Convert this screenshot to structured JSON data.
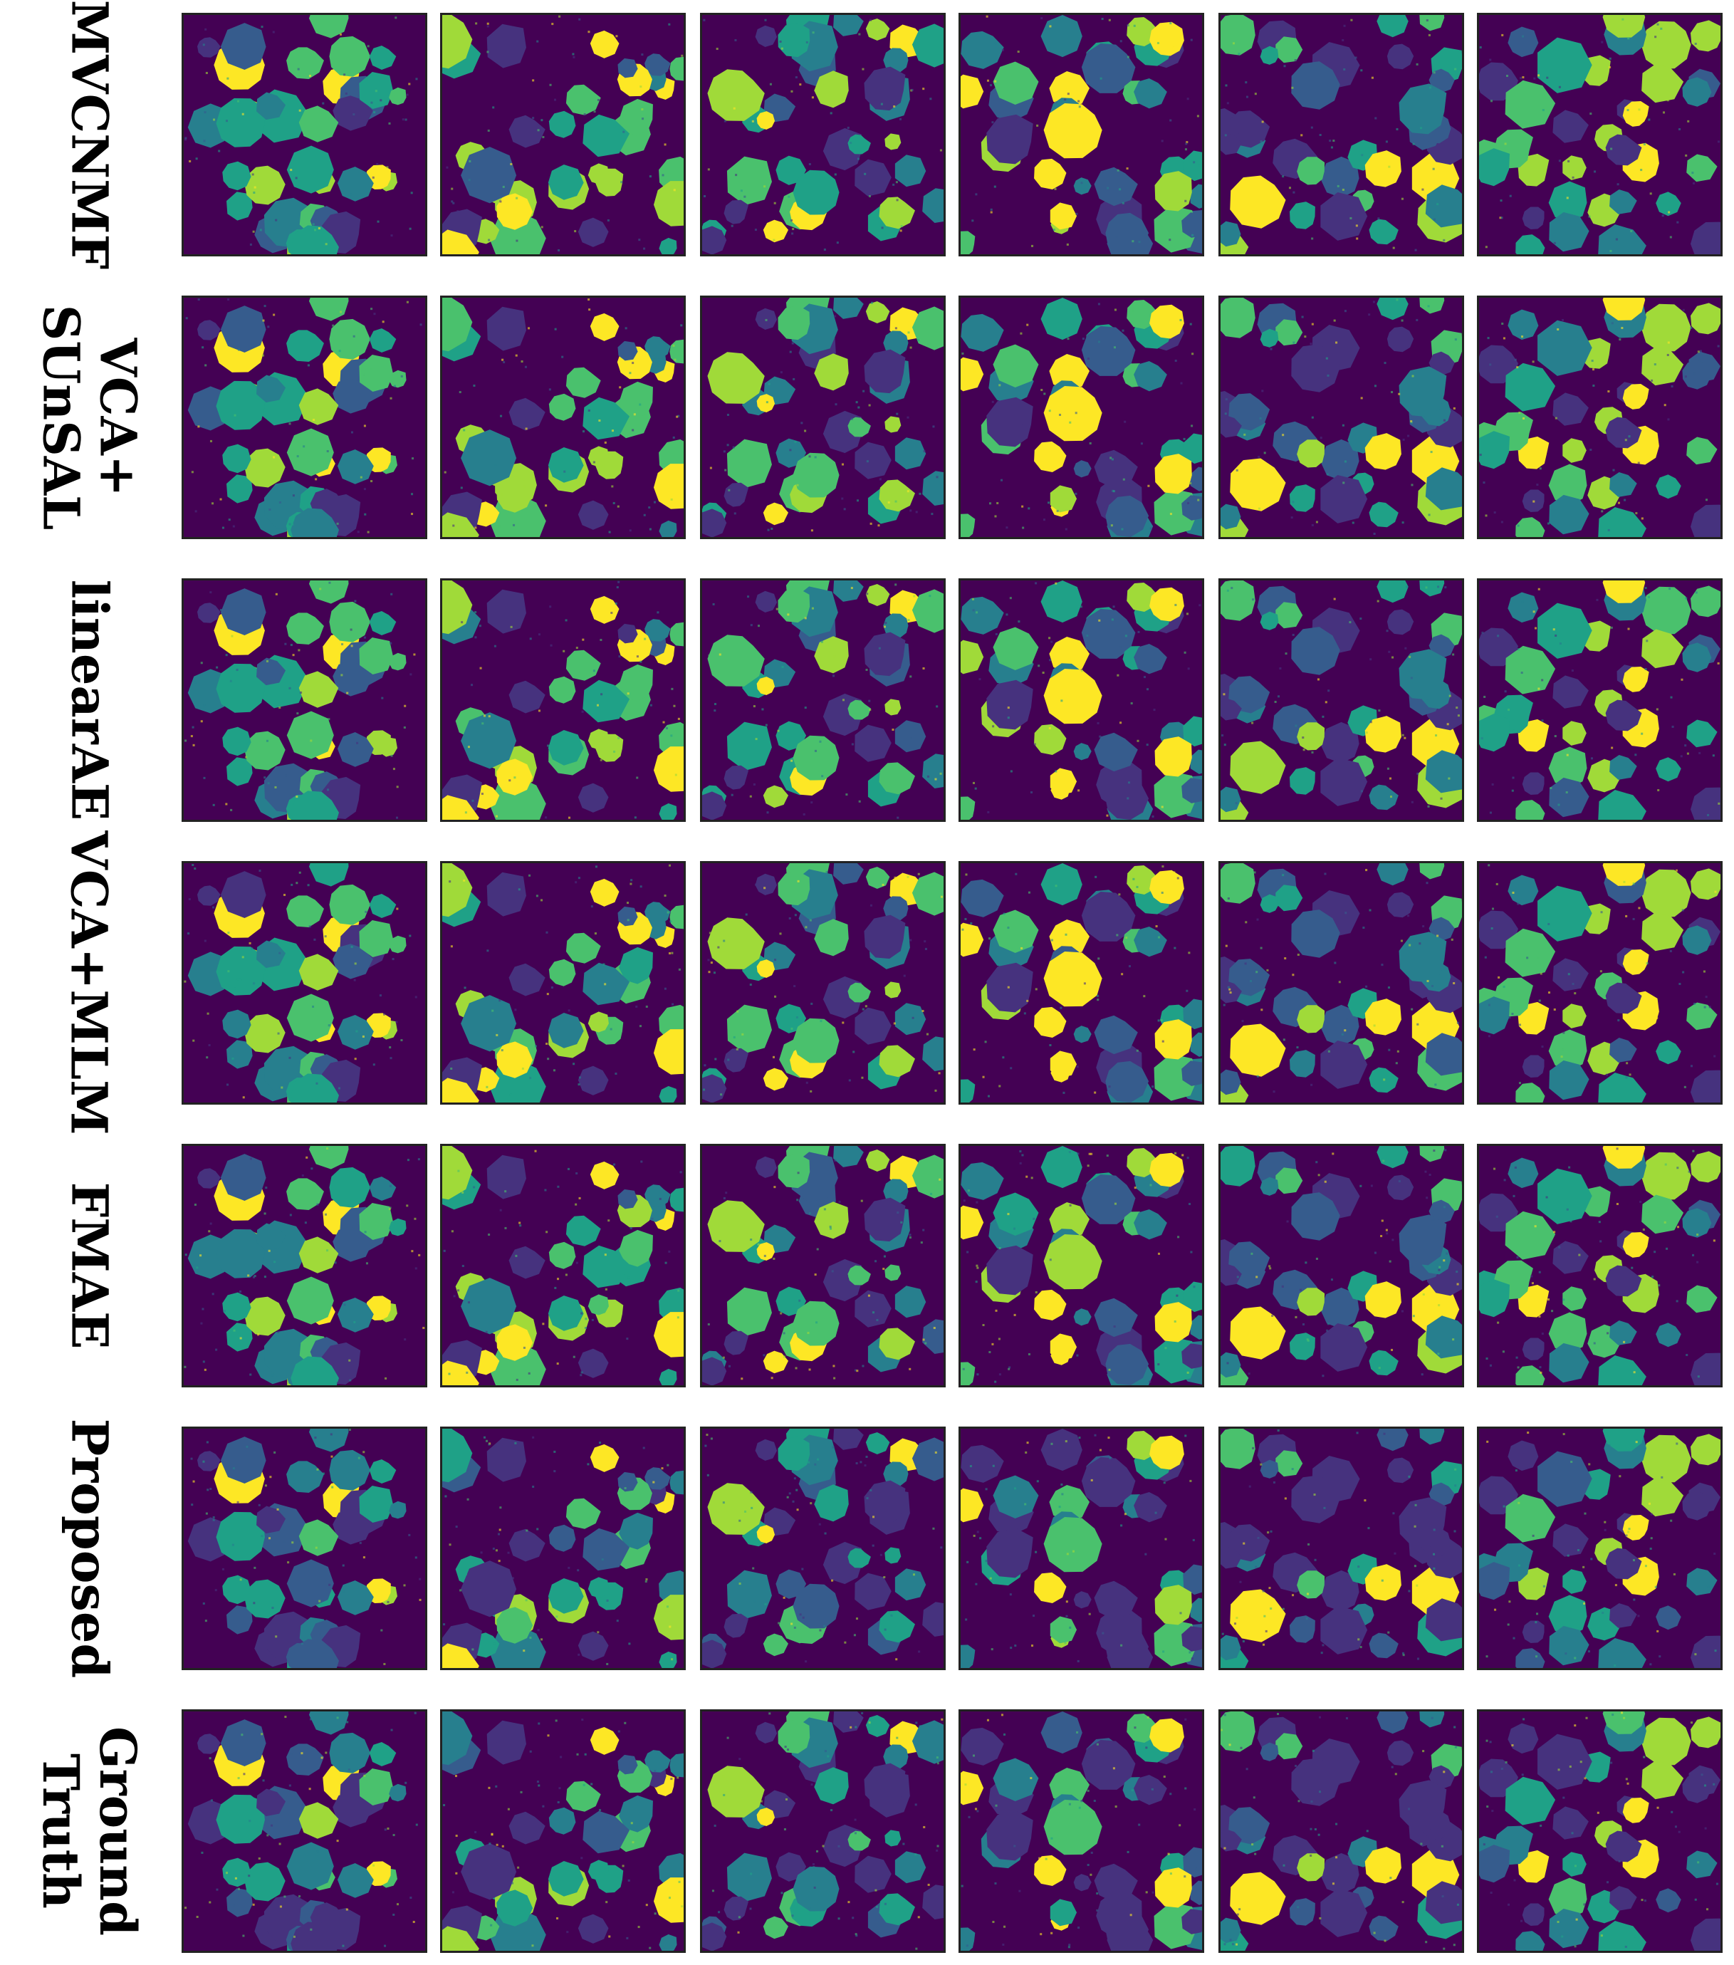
{
  "figure": {
    "columns": 6,
    "colors": {
      "background": "#440154",
      "palette": [
        "#46327e",
        "#365c8d",
        "#277f8e",
        "#1fa187",
        "#4ac16d",
        "#a0da39",
        "#fde725"
      ]
    },
    "rows": [
      {
        "label_lines": [
          "MVCNMF"
        ]
      },
      {
        "label_lines": [
          "VCA+",
          "SUnSAL"
        ]
      },
      {
        "label_lines": [
          "linearAE"
        ]
      },
      {
        "label_lines": [
          "VCA+MLM"
        ]
      },
      {
        "label_lines": [
          "FMAE"
        ]
      },
      {
        "label_lines": [
          "Proposed"
        ]
      },
      {
        "label_lines": [
          "Ground",
          "Truth"
        ]
      }
    ]
  }
}
